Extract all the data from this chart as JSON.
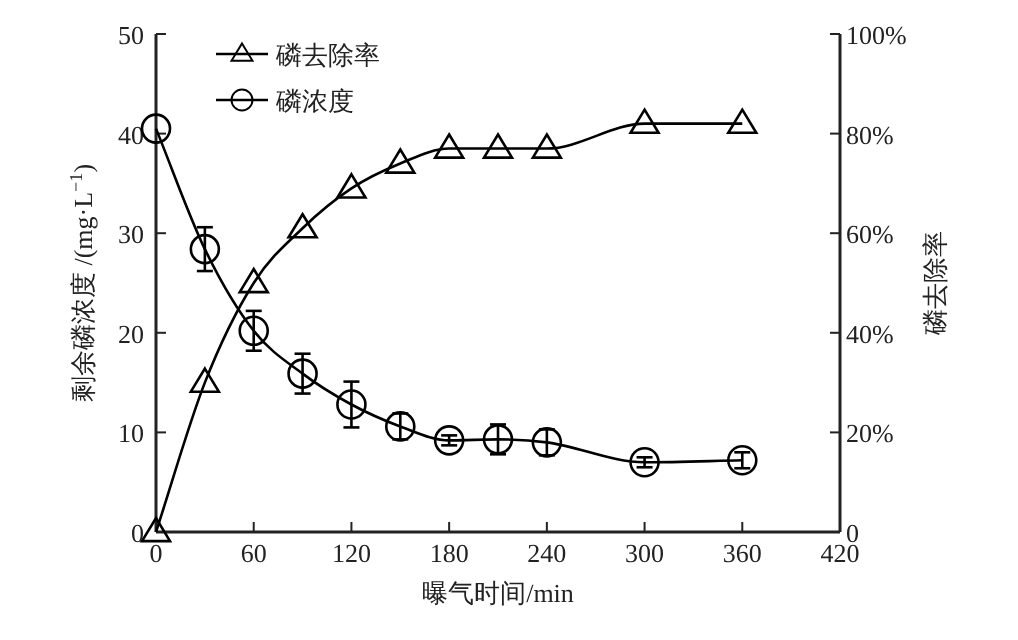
{
  "chart_data": {
    "type": "line",
    "xlabel": "曝气时间/min",
    "ylabel": "剩余磷浓度 /(mg·L$^{−1}$)",
    "y2label": "磷去除率",
    "x": [
      0,
      30,
      60,
      90,
      120,
      150,
      180,
      210,
      240,
      300,
      360
    ],
    "series": [
      {
        "name": "磷去除率",
        "color": "#000000",
        "axis": "y2",
        "marker": "triangle",
        "values": [
          0,
          30,
          50,
          61,
          69,
          74,
          77,
          77,
          77,
          82,
          82
        ]
      },
      {
        "name": "磷浓度",
        "color": "#000000",
        "axis": "y",
        "marker": "circle",
        "values": [
          40.5,
          28.4,
          20.2,
          15.9,
          12.8,
          10.6,
          9.2,
          9.3,
          9.0,
          7.0,
          7.2
        ],
        "errors": [
          null,
          2.2,
          2.0,
          2.0,
          2.3,
          1.3,
          0.5,
          1.5,
          1.3,
          0.5,
          0.8
        ]
      }
    ],
    "xlim": [
      0,
      420
    ],
    "xticks": [
      0,
      60,
      120,
      180,
      240,
      300,
      360,
      420
    ],
    "ylim": [
      0,
      50
    ],
    "yticks": [
      0,
      10,
      20,
      30,
      40,
      50
    ],
    "y2lim": [
      0,
      100
    ],
    "y2ticks": [
      0,
      {
        "value": 20,
        "label": "20%"
      },
      {
        "value": 40,
        "label": "40%"
      },
      {
        "value": 60,
        "label": "60%"
      },
      {
        "value": 80,
        "label": "80%"
      },
      {
        "value": 100,
        "label": "100%"
      }
    ],
    "legend": "top left",
    "grid": false,
    "line_style": "solid"
  }
}
